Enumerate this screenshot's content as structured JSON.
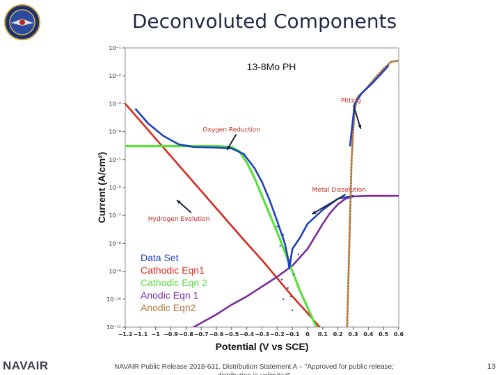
{
  "slide": {
    "title": "Deconvoluted Components",
    "footer": "NAVAIR Public Release 2018-631. Distribution Statement A – \"Approved for public release; distribution is unlimited\"",
    "page_number": "13",
    "brand": "NAVAIR",
    "logo_icon": "navair-seal-icon"
  },
  "chart_data": {
    "type": "line",
    "title": "13-8Mo PH",
    "xlabel": "Potential (V vs SCE)",
    "ylabel": "Current (A/cm²)",
    "xlim": [
      -1.2,
      0.6
    ],
    "ylim_log10": [
      -11,
      -1
    ],
    "y_scale": "log",
    "x_ticks": [
      "−1.2",
      "−1.1",
      "−1",
      "−0.9",
      "−0.8",
      "−0.7",
      "−0.6",
      "−0.5",
      "−0.4",
      "−0.3",
      "−0.2",
      "−0.1",
      "0",
      "0.1",
      "0.2",
      "0.3",
      "0.4",
      "0.5",
      "0.6"
    ],
    "x_tick_values": [
      -1.2,
      -1.1,
      -1.0,
      -0.9,
      -0.8,
      -0.7,
      -0.6,
      -0.5,
      -0.4,
      -0.3,
      -0.2,
      -0.1,
      0,
      0.1,
      0.2,
      0.3,
      0.4,
      0.5,
      0.6
    ],
    "y_ticks": [
      "10⁻¹",
      "10⁻²",
      "10⁻³",
      "10⁻⁴",
      "10⁻⁵",
      "10⁻⁶",
      "10⁻⁷",
      "10⁻⁸",
      "10⁻⁹",
      "10⁻¹⁰",
      "10⁻¹¹"
    ],
    "y_tick_values": [
      -1,
      -2,
      -3,
      -4,
      -5,
      -6,
      -7,
      -8,
      -9,
      -10,
      -11
    ],
    "legend_position": "bottom-left",
    "series": [
      {
        "name": "Data Set",
        "color": "#1f3fbf",
        "style": "solid",
        "points": [
          [
            -1.13,
            -3.2
          ],
          [
            -1.05,
            -3.7
          ],
          [
            -0.95,
            -4.15
          ],
          [
            -0.85,
            -4.45
          ],
          [
            -0.75,
            -4.55
          ],
          [
            -0.6,
            -4.57
          ],
          [
            -0.5,
            -4.6
          ],
          [
            -0.42,
            -4.8
          ],
          [
            -0.35,
            -5.3
          ],
          [
            -0.3,
            -5.8
          ],
          [
            -0.25,
            -6.45
          ],
          [
            -0.2,
            -7.2
          ],
          [
            -0.15,
            -8.0
          ],
          [
            -0.13,
            -8.5
          ],
          [
            -0.12,
            -8.9
          ],
          [
            -0.1,
            -8.2
          ],
          [
            -0.05,
            -7.8
          ],
          [
            0.0,
            -7.3
          ],
          [
            0.1,
            -6.8
          ],
          [
            0.2,
            -6.4
          ],
          [
            0.3,
            -6.3
          ]
        ]
      },
      {
        "name": "Cathodic Eqn1",
        "color": "#d9281c",
        "style": "solid",
        "points": [
          [
            -1.2,
            -3.0
          ],
          [
            -0.96,
            -4.5
          ],
          [
            -0.8,
            -5.5
          ],
          [
            -0.6,
            -6.75
          ],
          [
            -0.4,
            -8.0
          ],
          [
            -0.3,
            -8.6
          ],
          [
            -0.2,
            -9.25
          ],
          [
            -0.1,
            -9.9
          ],
          [
            0.0,
            -10.5
          ],
          [
            0.08,
            -11.0
          ]
        ]
      },
      {
        "name": "Cathodic Eqn 2",
        "color": "#55e03a",
        "style": "solid",
        "points": [
          [
            -1.2,
            -4.52
          ],
          [
            -0.6,
            -4.52
          ],
          [
            -0.5,
            -4.55
          ],
          [
            -0.45,
            -4.7
          ],
          [
            -0.4,
            -5.1
          ],
          [
            -0.35,
            -5.65
          ],
          [
            -0.3,
            -6.3
          ],
          [
            -0.25,
            -6.95
          ],
          [
            -0.2,
            -7.6
          ],
          [
            -0.15,
            -8.3
          ],
          [
            -0.1,
            -9.0
          ],
          [
            -0.05,
            -9.7
          ],
          [
            0.0,
            -10.3
          ],
          [
            0.05,
            -10.9
          ],
          [
            0.06,
            -11.0
          ]
        ]
      },
      {
        "name": "Anodic Eqn 1",
        "color": "#7a2a9e",
        "style": "solid",
        "points": [
          [
            -0.75,
            -11.0
          ],
          [
            -0.6,
            -10.55
          ],
          [
            -0.5,
            -10.2
          ],
          [
            -0.4,
            -9.9
          ],
          [
            -0.3,
            -9.55
          ],
          [
            -0.2,
            -9.2
          ],
          [
            -0.1,
            -8.8
          ],
          [
            0.0,
            -8.2
          ],
          [
            0.05,
            -7.75
          ],
          [
            0.1,
            -7.3
          ],
          [
            0.15,
            -6.9
          ],
          [
            0.2,
            -6.6
          ],
          [
            0.25,
            -6.4
          ],
          [
            0.3,
            -6.32
          ],
          [
            0.4,
            -6.3
          ],
          [
            0.6,
            -6.3
          ]
        ]
      },
      {
        "name": "Anodic Eqn2",
        "color": "#b07a3a",
        "style": "dotted",
        "points": [
          [
            0.26,
            -11.0
          ],
          [
            0.27,
            -9.0
          ],
          [
            0.28,
            -7.0
          ],
          [
            0.29,
            -5.0
          ],
          [
            0.3,
            -4.0
          ],
          [
            0.31,
            -3.2
          ],
          [
            0.33,
            -2.75
          ],
          [
            0.38,
            -2.5
          ],
          [
            0.45,
            -2.05
          ],
          [
            0.5,
            -1.75
          ],
          [
            0.55,
            -1.5
          ],
          [
            0.6,
            -1.45
          ]
        ]
      },
      {
        "name": "",
        "color": "#1f3fbf",
        "style": "solid",
        "points": [
          [
            0.28,
            -4.5
          ],
          [
            0.31,
            -3.0
          ],
          [
            0.36,
            -2.6
          ],
          [
            0.42,
            -2.3
          ],
          [
            0.48,
            -1.95
          ],
          [
            0.53,
            -1.65
          ]
        ]
      }
    ],
    "annotations": [
      {
        "text": "Pitting",
        "x": 0.22,
        "y": -2.95,
        "color": "#c0271c",
        "arrow_to": [
          0.35,
          -3.9
        ]
      },
      {
        "text": "Oxygen Reduction",
        "x": -0.69,
        "y": -4.0,
        "color": "#c0271c",
        "arrow_to": [
          -0.53,
          -4.65
        ]
      },
      {
        "text": "Metal Dissolution",
        "x": 0.03,
        "y": -6.15,
        "color": "#c0271c",
        "arrow_to": [
          0.03,
          -6.95
        ]
      },
      {
        "text": "Hydrogen Evolution",
        "x": -1.05,
        "y": -7.2,
        "color": "#c0271c",
        "arrow_to": [
          -0.86,
          -6.45
        ]
      }
    ]
  }
}
